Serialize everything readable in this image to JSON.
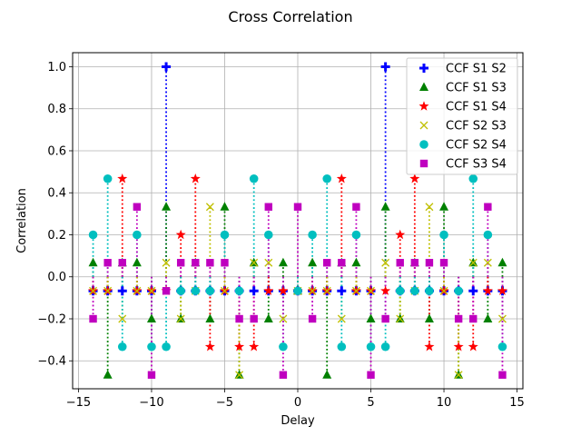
{
  "chart_data": {
    "type": "scatter",
    "title": "Cross Correlation",
    "xlabel": "Delay",
    "ylabel": "Correlation",
    "xlim": [
      -15.4,
      15.4
    ],
    "ylim": [
      -0.533,
      1.067
    ],
    "xticks": [
      -15,
      -10,
      -5,
      0,
      5,
      10,
      15
    ],
    "yticks": [
      -0.4,
      -0.2,
      0.0,
      0.2,
      0.4,
      0.6,
      0.8,
      1.0
    ],
    "xtick_labels": [
      "−15",
      "−10",
      "−5",
      "0",
      "5",
      "10",
      "15"
    ],
    "ytick_labels": [
      "−0.4",
      "−0.2",
      "0.0",
      "0.2",
      "0.4",
      "0.6",
      "0.8",
      "1.0"
    ],
    "grid": true,
    "legend_position": "top-right",
    "x": [
      -14,
      -13,
      -12,
      -11,
      -10,
      -9,
      -8,
      -7,
      -6,
      -5,
      -4,
      -3,
      -2,
      -1,
      0,
      1,
      2,
      3,
      4,
      5,
      6,
      7,
      8,
      9,
      10,
      11,
      12,
      13,
      14
    ],
    "series": [
      {
        "name": "CCF S1 S2",
        "color": "#0000ff",
        "marker": "plus",
        "values": [
          -0.067,
          -0.067,
          -0.067,
          -0.067,
          -0.067,
          1.0,
          -0.067,
          -0.067,
          -0.067,
          -0.067,
          -0.067,
          -0.067,
          -0.067,
          -0.067,
          -0.067,
          -0.067,
          -0.067,
          -0.067,
          -0.067,
          -0.067,
          1.0,
          -0.067,
          -0.067,
          -0.067,
          -0.067,
          -0.067,
          -0.067,
          -0.067,
          -0.067
        ]
      },
      {
        "name": "CCF S1 S3",
        "color": "#008000",
        "marker": "triangle",
        "values": [
          0.067,
          -0.467,
          0.067,
          0.067,
          -0.2,
          0.333,
          -0.2,
          0.067,
          -0.2,
          0.333,
          -0.467,
          0.067,
          -0.2,
          0.067,
          -0.067,
          0.067,
          -0.467,
          0.067,
          0.067,
          -0.2,
          0.333,
          -0.2,
          0.067,
          -0.2,
          0.333,
          -0.467,
          0.067,
          -0.2,
          0.067
        ]
      },
      {
        "name": "CCF S1 S4",
        "color": "#ff0000",
        "marker": "star",
        "values": [
          -0.067,
          -0.067,
          0.467,
          -0.067,
          -0.067,
          -0.067,
          0.2,
          0.467,
          -0.333,
          -0.067,
          -0.333,
          -0.333,
          -0.067,
          -0.067,
          -0.067,
          -0.067,
          -0.067,
          0.467,
          -0.067,
          -0.067,
          -0.067,
          0.2,
          0.467,
          -0.333,
          -0.067,
          -0.333,
          -0.333,
          -0.067,
          -0.067
        ]
      },
      {
        "name": "CCF S2 S3",
        "color": "#bfbf00",
        "marker": "x",
        "values": [
          -0.067,
          -0.067,
          -0.2,
          -0.067,
          -0.067,
          0.067,
          -0.2,
          -0.067,
          0.333,
          -0.067,
          -0.467,
          0.067,
          0.067,
          -0.2,
          -0.067,
          -0.067,
          -0.067,
          -0.2,
          -0.067,
          -0.067,
          0.067,
          -0.2,
          -0.067,
          0.333,
          -0.067,
          -0.467,
          0.067,
          0.067,
          -0.2
        ]
      },
      {
        "name": "CCF S2 S4",
        "color": "#00bfbf",
        "marker": "circle",
        "values": [
          0.2,
          0.467,
          -0.333,
          0.2,
          -0.333,
          -0.333,
          -0.067,
          -0.067,
          -0.067,
          0.2,
          -0.067,
          0.467,
          0.2,
          -0.333,
          -0.067,
          0.2,
          0.467,
          -0.333,
          0.2,
          -0.333,
          -0.333,
          -0.067,
          -0.067,
          -0.067,
          0.2,
          -0.067,
          0.467,
          0.2,
          -0.333
        ]
      },
      {
        "name": "CCF S3 S4",
        "color": "#bf00bf",
        "marker": "square",
        "values": [
          -0.2,
          0.067,
          0.067,
          0.333,
          -0.467,
          -0.067,
          0.067,
          0.067,
          0.067,
          0.067,
          -0.2,
          -0.2,
          0.333,
          -0.467,
          0.333,
          -0.2,
          0.067,
          0.067,
          0.333,
          -0.467,
          -0.2,
          0.067,
          0.067,
          0.067,
          0.067,
          -0.2,
          -0.2,
          0.333,
          -0.467
        ]
      }
    ]
  }
}
